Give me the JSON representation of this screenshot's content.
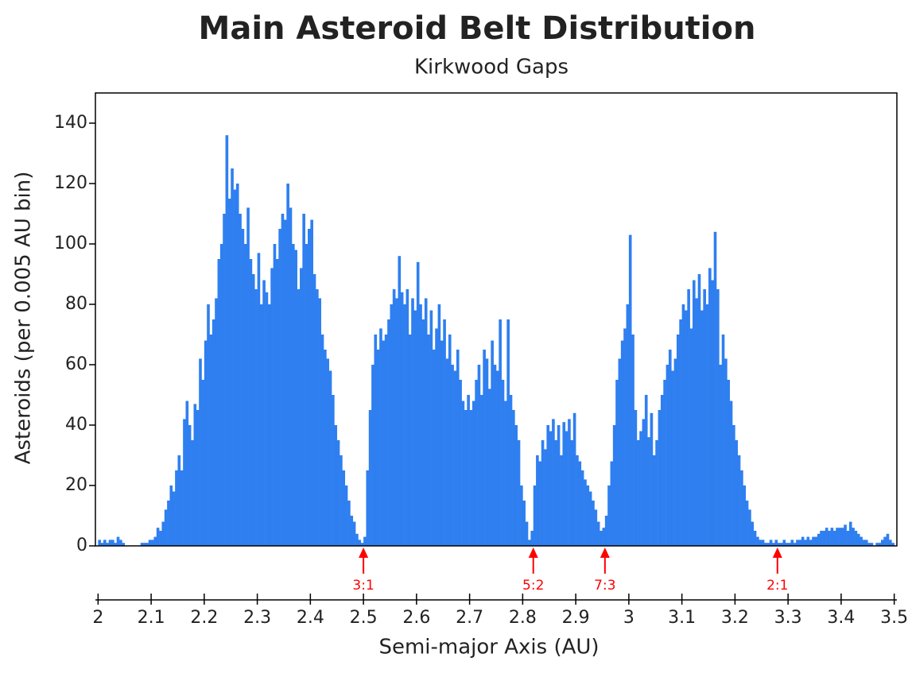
{
  "chart_data": {
    "type": "histogram",
    "title": "Main Asteroid Belt Distribution",
    "subtitle": "Kirkwood Gaps",
    "xlabel": "Semi-major Axis (AU)",
    "ylabel": "Asteroids (per 0.005 AU bin)",
    "color": "#2f7ff0",
    "title_color": "#1f3ff0",
    "annotation_color": "#ff0000",
    "xlim": [
      1.995,
      3.505
    ],
    "ylim": [
      0,
      150
    ],
    "xticks": [
      2,
      2.1,
      2.2,
      2.3,
      2.4,
      2.5,
      2.6,
      2.7,
      2.8,
      2.9,
      3,
      3.1,
      3.2,
      3.3,
      3.4,
      3.5
    ],
    "yticks": [
      0,
      20,
      40,
      60,
      80,
      100,
      120,
      140
    ],
    "annotations": [
      {
        "label": "3:1",
        "x": 2.5
      },
      {
        "label": "5:2",
        "x": 2.82
      },
      {
        "label": "7:3",
        "x": 2.955
      },
      {
        "label": "2:1",
        "x": 3.28
      }
    ],
    "bins": [
      2,
      2.005,
      2.01,
      2.015,
      2.02,
      2.025,
      2.03,
      2.035,
      2.04,
      2.045,
      2.05,
      2.055,
      2.06,
      2.065,
      2.07,
      2.075,
      2.08,
      2.085,
      2.09,
      2.095,
      2.1,
      2.105,
      2.11,
      2.115,
      2.12,
      2.125,
      2.13,
      2.135,
      2.14,
      2.145,
      2.15,
      2.155,
      2.16,
      2.165,
      2.17,
      2.175,
      2.18,
      2.185,
      2.19,
      2.195,
      2.2,
      2.205,
      2.21,
      2.215,
      2.22,
      2.225,
      2.23,
      2.235,
      2.24,
      2.245,
      2.25,
      2.255,
      2.26,
      2.265,
      2.27,
      2.275,
      2.28,
      2.285,
      2.29,
      2.295,
      2.3,
      2.305,
      2.31,
      2.315,
      2.32,
      2.325,
      2.33,
      2.335,
      2.34,
      2.345,
      2.35,
      2.355,
      2.36,
      2.365,
      2.37,
      2.375,
      2.38,
      2.385,
      2.39,
      2.395,
      2.4,
      2.405,
      2.41,
      2.415,
      2.42,
      2.425,
      2.43,
      2.435,
      2.44,
      2.445,
      2.45,
      2.455,
      2.46,
      2.465,
      2.47,
      2.475,
      2.48,
      2.485,
      2.49,
      2.495,
      2.5,
      2.505,
      2.51,
      2.515,
      2.52,
      2.525,
      2.53,
      2.535,
      2.54,
      2.545,
      2.55,
      2.555,
      2.56,
      2.565,
      2.57,
      2.575,
      2.58,
      2.585,
      2.59,
      2.595,
      2.6,
      2.605,
      2.61,
      2.615,
      2.62,
      2.625,
      2.63,
      2.635,
      2.64,
      2.645,
      2.65,
      2.655,
      2.66,
      2.665,
      2.67,
      2.675,
      2.68,
      2.685,
      2.69,
      2.695,
      2.7,
      2.705,
      2.71,
      2.715,
      2.72,
      2.725,
      2.73,
      2.735,
      2.74,
      2.745,
      2.75,
      2.755,
      2.76,
      2.765,
      2.77,
      2.775,
      2.78,
      2.785,
      2.79,
      2.795,
      2.8,
      2.805,
      2.81,
      2.815,
      2.82,
      2.825,
      2.83,
      2.835,
      2.84,
      2.845,
      2.85,
      2.855,
      2.86,
      2.865,
      2.87,
      2.875,
      2.88,
      2.885,
      2.89,
      2.895,
      2.9,
      2.905,
      2.91,
      2.915,
      2.92,
      2.925,
      2.93,
      2.935,
      2.94,
      2.945,
      2.95,
      2.955,
      2.96,
      2.965,
      2.97,
      2.975,
      2.98,
      2.985,
      2.99,
      2.995,
      3,
      3.005,
      3.01,
      3.015,
      3.02,
      3.025,
      3.03,
      3.035,
      3.04,
      3.045,
      3.05,
      3.055,
      3.06,
      3.065,
      3.07,
      3.075,
      3.08,
      3.085,
      3.09,
      3.095,
      3.1,
      3.105,
      3.11,
      3.115,
      3.12,
      3.125,
      3.13,
      3.135,
      3.14,
      3.145,
      3.15,
      3.155,
      3.16,
      3.165,
      3.17,
      3.175,
      3.18,
      3.185,
      3.19,
      3.195,
      3.2,
      3.205,
      3.21,
      3.215,
      3.22,
      3.225,
      3.23,
      3.235,
      3.24,
      3.245,
      3.25,
      3.255,
      3.26,
      3.265,
      3.27,
      3.275,
      3.28,
      3.285,
      3.29,
      3.295,
      3.3,
      3.305,
      3.31,
      3.315,
      3.32,
      3.325,
      3.33,
      3.335,
      3.34,
      3.345,
      3.35,
      3.355,
      3.36,
      3.365,
      3.37,
      3.375,
      3.38,
      3.385,
      3.39,
      3.395,
      3.4,
      3.405,
      3.41,
      3.415,
      3.42,
      3.425,
      3.43,
      3.435,
      3.44,
      3.445,
      3.45,
      3.455,
      3.46,
      3.465,
      3.47,
      3.475,
      3.48,
      3.485,
      3.49,
      3.495,
      3.5
    ],
    "counts": [
      2,
      1,
      2,
      1,
      2,
      2,
      1,
      3,
      2,
      1,
      0,
      0,
      0,
      0,
      0,
      0,
      1,
      1,
      1,
      2,
      2,
      3,
      6,
      5,
      8,
      12,
      15,
      20,
      18,
      25,
      30,
      25,
      42,
      48,
      40,
      35,
      47,
      45,
      62,
      55,
      68,
      80,
      70,
      75,
      82,
      95,
      100,
      110,
      136,
      115,
      125,
      118,
      120,
      110,
      105,
      100,
      112,
      95,
      90,
      85,
      97,
      80,
      88,
      84,
      80,
      92,
      100,
      95,
      105,
      110,
      108,
      120,
      112,
      100,
      98,
      85,
      92,
      110,
      100,
      105,
      108,
      90,
      85,
      82,
      70,
      65,
      62,
      58,
      50,
      40,
      35,
      30,
      25,
      20,
      15,
      10,
      8,
      4,
      2,
      1,
      3,
      25,
      45,
      60,
      70,
      65,
      72,
      68,
      70,
      75,
      80,
      85,
      82,
      96,
      84,
      80,
      85,
      70,
      82,
      78,
      94,
      80,
      75,
      82,
      70,
      78,
      65,
      72,
      80,
      68,
      75,
      62,
      70,
      60,
      58,
      65,
      55,
      48,
      45,
      50,
      45,
      48,
      55,
      60,
      50,
      65,
      62,
      52,
      68,
      60,
      58,
      75,
      55,
      48,
      75,
      50,
      45,
      40,
      35,
      20,
      15,
      8,
      2,
      5,
      20,
      30,
      28,
      35,
      32,
      40,
      38,
      42,
      35,
      40,
      30,
      41,
      38,
      42,
      35,
      44,
      30,
      28,
      25,
      22,
      20,
      18,
      15,
      12,
      8,
      5,
      6,
      10,
      20,
      28,
      40,
      55,
      62,
      68,
      72,
      80,
      103,
      70,
      45,
      35,
      38,
      42,
      50,
      36,
      44,
      30,
      35,
      45,
      50,
      55,
      60,
      65,
      58,
      62,
      70,
      75,
      80,
      78,
      85,
      72,
      88,
      82,
      90,
      78,
      85,
      80,
      92,
      88,
      104,
      85,
      60,
      70,
      62,
      55,
      48,
      40,
      35,
      30,
      25,
      20,
      15,
      12,
      8,
      5,
      3,
      2,
      2,
      1,
      1,
      2,
      1,
      2,
      1,
      1,
      2,
      1,
      1,
      2,
      1,
      2,
      2,
      3,
      2,
      3,
      2,
      3,
      3,
      4,
      5,
      5,
      6,
      5,
      6,
      5,
      6,
      6,
      6,
      7,
      5,
      8,
      6,
      5,
      4,
      3,
      2,
      2,
      1,
      1,
      0,
      1,
      1,
      2,
      3,
      4,
      2,
      1
    ]
  }
}
